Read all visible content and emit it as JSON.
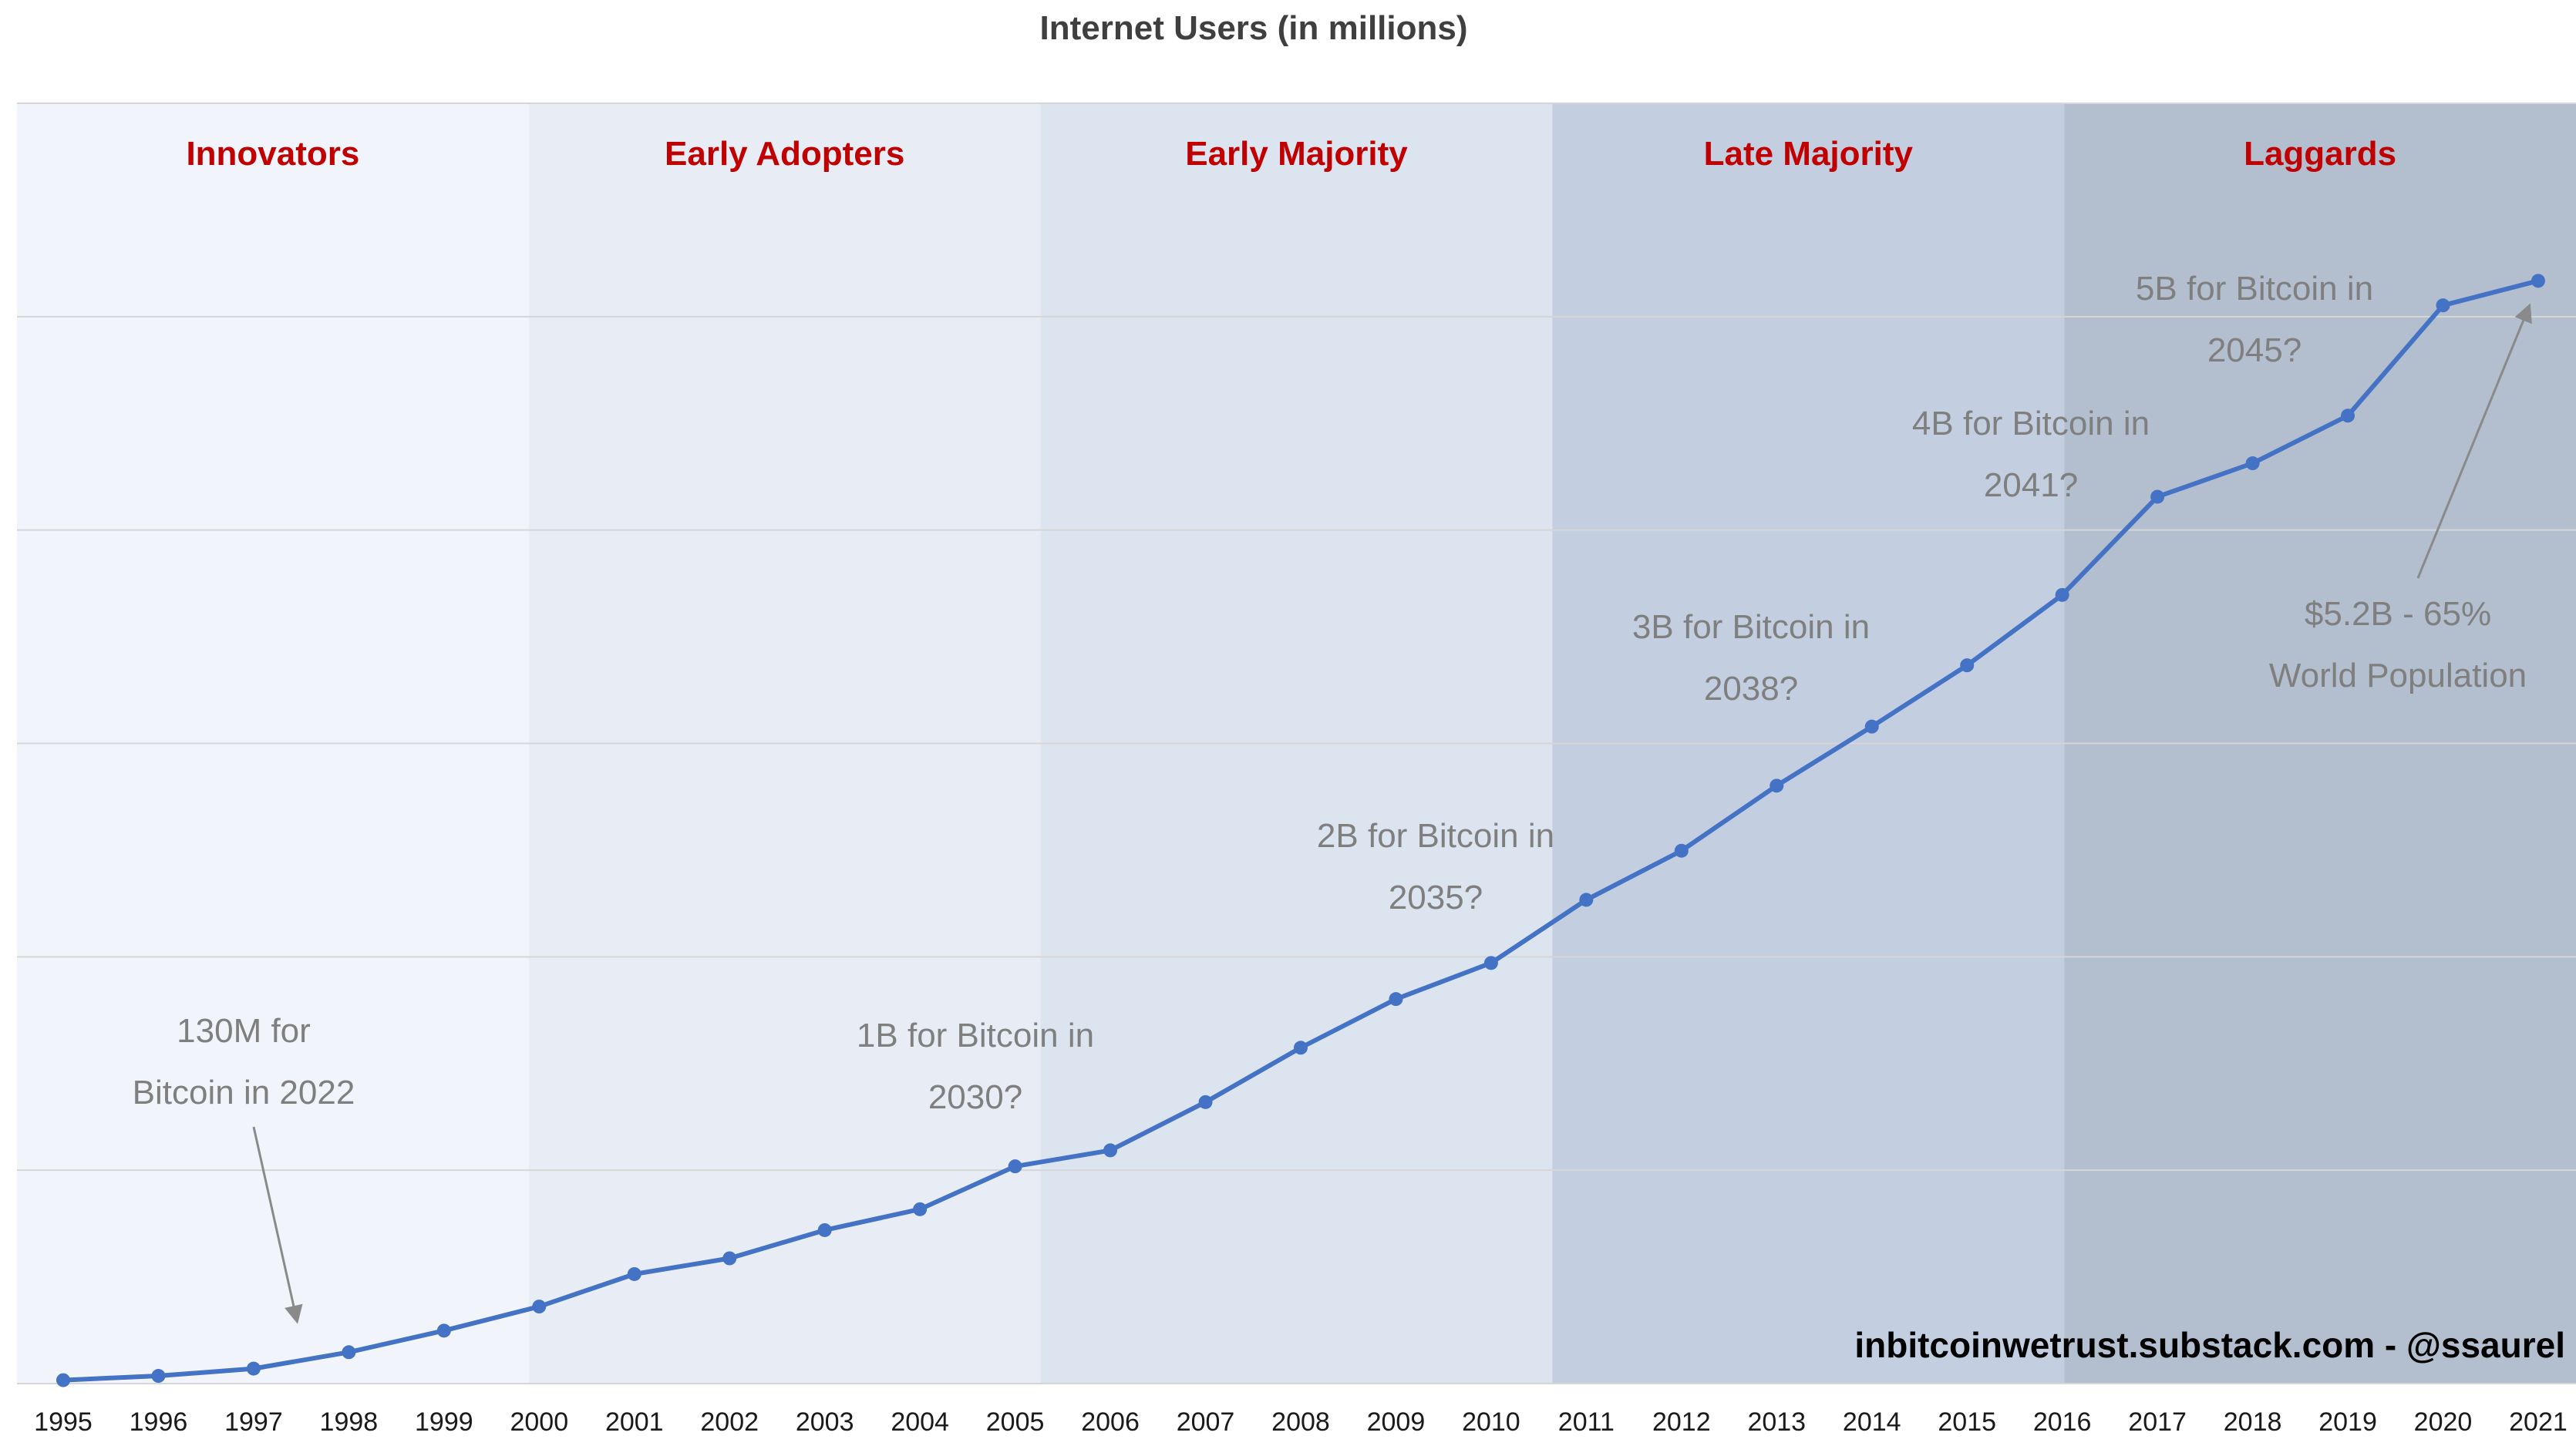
{
  "chart_data": {
    "type": "line",
    "title": "Internet Users (in millions)",
    "x": [
      "1995",
      "1996",
      "1997",
      "1998",
      "1999",
      "2000",
      "2001",
      "2002",
      "2003",
      "2004",
      "2005",
      "2006",
      "2007",
      "2008",
      "2009",
      "2010",
      "2011",
      "2012",
      "2013",
      "2014",
      "2015",
      "2016",
      "2017",
      "2018",
      "2019",
      "2020",
      "2021"
    ],
    "series": [
      {
        "name": "Internet users (millions)",
        "color": "#4472c4",
        "values": [
          16,
          36,
          70,
          147,
          248,
          361,
          513,
          587,
          719,
          817,
          1018,
          1093,
          1319,
          1574,
          1802,
          1971,
          2267,
          2497,
          2802,
          3079,
          3366,
          3696,
          4156,
          4313,
          4536,
          5053,
          5168
        ]
      }
    ],
    "xlabel": "",
    "ylabel": "",
    "ylim": [
      0,
      6000
    ],
    "gridlines": [
      1000,
      2000,
      3000,
      4000,
      5000,
      6000
    ],
    "grid_color": "#d6d6d6",
    "legend_position": "none",
    "phases": [
      {
        "label": "Innovators",
        "band_color": "#f1f4fa"
      },
      {
        "label": "Early Adopters",
        "band_color": "#e7ecf5"
      },
      {
        "label": "Early Majority",
        "band_color": "#dce4f0"
      },
      {
        "label": "Late Majority",
        "band_color": "#c3cee0"
      },
      {
        "label": "Laggards",
        "band_color": "#b3becf"
      }
    ],
    "phase_label_color": "#c00000",
    "annotation_color": "#7f7f7f",
    "annotations": [
      {
        "lines": [
          "130M for",
          "Bitcoin in 2022"
        ]
      },
      {
        "lines": [
          "1B for Bitcoin in",
          "2030?"
        ]
      },
      {
        "lines": [
          "2B for Bitcoin in",
          "2035?"
        ]
      },
      {
        "lines": [
          "3B for Bitcoin in",
          "2038?"
        ]
      },
      {
        "lines": [
          "4B for Bitcoin in",
          "2041?"
        ]
      },
      {
        "lines": [
          "5B for Bitcoin in",
          "2045?"
        ]
      },
      {
        "lines": [
          "$5.2B - 65%",
          "World Population"
        ]
      }
    ],
    "axis_label_color": "#1a1a1a",
    "watermark": "inbitcoinwetrust.substack.com - @ssaurel"
  }
}
